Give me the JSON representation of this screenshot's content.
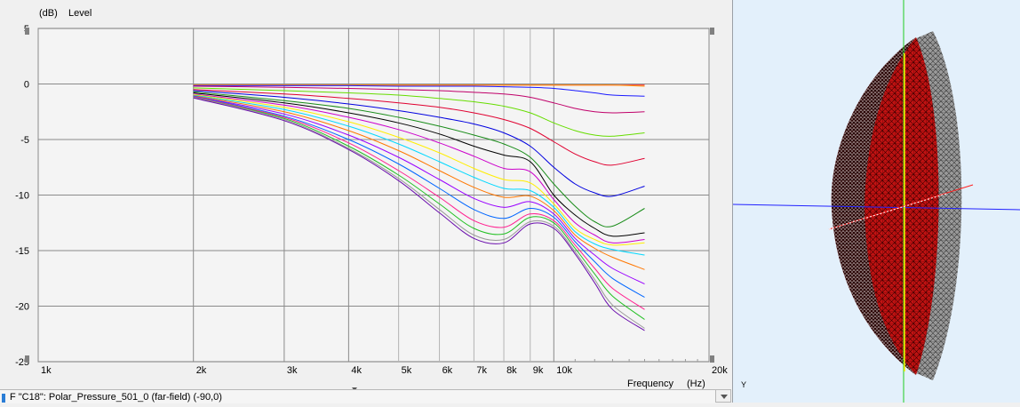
{
  "chart_data": {
    "type": "line",
    "ylabel_unit": "(dB)",
    "ylabel": "Level",
    "xlabel": "Frequency",
    "xlabel_unit": "(Hz)",
    "xscale": "log",
    "xlim": [
      1000,
      20000
    ],
    "ylim": [
      -25,
      5
    ],
    "grid": true,
    "yticks": [
      "5",
      "0",
      "-5",
      "-10",
      "-15",
      "-20",
      "-25"
    ],
    "xticks": [
      {
        "value": 1000,
        "label": "1k"
      },
      {
        "value": 2000,
        "label": "2k"
      },
      {
        "value": 3000,
        "label": "3k"
      },
      {
        "value": 4000,
        "label": "4k"
      },
      {
        "value": 5000,
        "label": "5k"
      },
      {
        "value": 6000,
        "label": "6k"
      },
      {
        "value": 7000,
        "label": "7k"
      },
      {
        "value": 8000,
        "label": "8k"
      },
      {
        "value": 9000,
        "label": "9k"
      },
      {
        "value": 10000,
        "label": "10k"
      },
      {
        "value": 20000,
        "label": "20k"
      }
    ],
    "x": [
      2000,
      3000,
      4000,
      5000,
      6000,
      7000,
      8000,
      9000,
      10000,
      11000,
      12000,
      13000,
      15000
    ],
    "series": [
      {
        "color": "#ff2020",
        "values": [
          -0.1,
          -0.1,
          -0.1,
          -0.1,
          -0.1,
          -0.1,
          -0.1,
          -0.1,
          -0.1,
          -0.1,
          -0.1,
          -0.1,
          -0.1
        ]
      },
      {
        "color": "#ff8c00",
        "values": [
          -0.1,
          -0.1,
          -0.1,
          -0.1,
          -0.1,
          -0.1,
          -0.1,
          -0.1,
          -0.1,
          -0.1,
          -0.1,
          -0.1,
          -0.2
        ]
      },
      {
        "color": "#1a1aff",
        "values": [
          -0.15,
          -0.15,
          -0.15,
          -0.2,
          -0.2,
          -0.2,
          -0.25,
          -0.3,
          -0.4,
          -0.6,
          -0.8,
          -1.0,
          -1.1
        ]
      },
      {
        "color": "#c0006a",
        "values": [
          -0.2,
          -0.3,
          -0.4,
          -0.5,
          -0.6,
          -0.75,
          -0.9,
          -1.2,
          -1.7,
          -2.2,
          -2.5,
          -2.6,
          -2.5
        ]
      },
      {
        "color": "#66dd00",
        "values": [
          -0.35,
          -0.6,
          -0.8,
          -1.0,
          -1.3,
          -1.6,
          -2.0,
          -2.6,
          -3.5,
          -4.2,
          -4.6,
          -4.7,
          -4.4
        ]
      },
      {
        "color": "#e00030",
        "values": [
          -0.5,
          -0.9,
          -1.3,
          -1.7,
          -2.1,
          -2.6,
          -3.2,
          -4.0,
          -5.2,
          -6.3,
          -7.0,
          -7.3,
          -6.7
        ]
      },
      {
        "color": "#0000e0",
        "values": [
          -0.6,
          -1.2,
          -1.8,
          -2.4,
          -3.0,
          -3.6,
          -4.4,
          -5.6,
          -7.5,
          -9.0,
          -9.8,
          -10.1,
          -9.2
        ]
      },
      {
        "color": "#188c18",
        "values": [
          -0.7,
          -1.5,
          -2.2,
          -3.0,
          -3.8,
          -4.6,
          -5.4,
          -6.6,
          -9.0,
          -11.0,
          -12.4,
          -12.8,
          -11.2
        ]
      },
      {
        "color": "#000000",
        "values": [
          -0.8,
          -1.7,
          -2.6,
          -3.5,
          -4.5,
          -5.6,
          -6.4,
          -7.0,
          -10.0,
          -11.8,
          -13.0,
          -13.7,
          -13.4
        ]
      },
      {
        "color": "#cc00cc",
        "values": [
          -0.9,
          -1.9,
          -3.0,
          -4.1,
          -5.3,
          -6.5,
          -7.6,
          -7.9,
          -10.4,
          -12.5,
          -13.6,
          -14.3,
          -14.0
        ]
      },
      {
        "color": "#ffee00",
        "values": [
          -0.95,
          -2.1,
          -3.4,
          -4.8,
          -6.2,
          -7.6,
          -8.6,
          -8.9,
          -10.8,
          -13.0,
          -14.0,
          -14.5,
          -14.3
        ]
      },
      {
        "color": "#00d8ff",
        "values": [
          -1.0,
          -2.3,
          -3.8,
          -5.4,
          -7.0,
          -8.4,
          -9.4,
          -9.6,
          -11.1,
          -13.3,
          -14.4,
          -14.9,
          -15.4
        ]
      },
      {
        "color": "#ff7700",
        "values": [
          -1.05,
          -2.5,
          -4.2,
          -6.0,
          -7.8,
          -9.3,
          -10.2,
          -10.1,
          -11.4,
          -13.6,
          -14.8,
          -15.6,
          -16.7
        ]
      },
      {
        "color": "#9900ff",
        "values": [
          -1.1,
          -2.7,
          -4.6,
          -6.6,
          -8.6,
          -10.3,
          -11.1,
          -10.6,
          -11.7,
          -13.9,
          -15.4,
          -16.6,
          -18.0
        ]
      },
      {
        "color": "#0066ff",
        "values": [
          -1.1,
          -2.9,
          -5.0,
          -7.2,
          -9.4,
          -11.3,
          -12.1,
          -11.2,
          -12.0,
          -14.2,
          -16.0,
          -17.5,
          -19.2
        ]
      },
      {
        "color": "#ff2090",
        "values": [
          -1.15,
          -3.0,
          -5.3,
          -7.8,
          -10.2,
          -12.3,
          -12.9,
          -11.7,
          -12.3,
          -14.5,
          -16.6,
          -18.4,
          -20.3
        ]
      },
      {
        "color": "#22c022",
        "values": [
          -1.2,
          -3.1,
          -5.6,
          -8.2,
          -10.8,
          -13.0,
          -13.5,
          -12.0,
          -12.5,
          -14.8,
          -17.1,
          -19.1,
          -21.2
        ]
      },
      {
        "color": "#999999",
        "values": [
          -1.2,
          -3.2,
          -5.8,
          -8.5,
          -11.3,
          -13.6,
          -14.0,
          -12.4,
          -12.8,
          -15.1,
          -17.6,
          -19.9,
          -22.0
        ]
      },
      {
        "color": "#6a0dad",
        "values": [
          -1.25,
          -3.3,
          -5.9,
          -8.7,
          -11.6,
          -13.9,
          -14.3,
          -12.6,
          -13.0,
          -15.3,
          -17.9,
          -20.3,
          -22.2
        ]
      }
    ]
  },
  "status": {
    "text": "F \"C18\": Polar_Pressure_501_0 (far-field) (-90,0)"
  },
  "viewport": {
    "axis_y_label": "Y"
  }
}
